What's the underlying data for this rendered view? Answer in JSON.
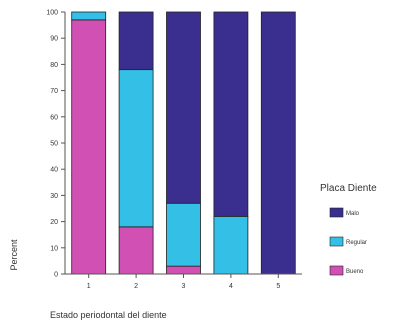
{
  "chart_data": {
    "type": "bar",
    "stacked": true,
    "categories": [
      "1",
      "2",
      "3",
      "4",
      "5"
    ],
    "series": [
      {
        "name": "Bueno",
        "color": "#d050b4",
        "values": [
          97,
          18,
          3,
          0,
          0
        ]
      },
      {
        "name": "Regular",
        "color": "#34bfe6",
        "values": [
          3,
          60,
          24,
          22,
          0
        ]
      },
      {
        "name": "Malo",
        "color": "#3a2f8f",
        "values": [
          0,
          22,
          73,
          78,
          100
        ]
      }
    ],
    "xlabel": "Estado periodontal del diente",
    "ylabel": "Percent",
    "ylim": [
      0,
      100
    ],
    "yticks": [
      "0",
      "10",
      "20",
      "30",
      "40",
      "50",
      "60",
      "70",
      "80",
      "90",
      "100"
    ],
    "legend": {
      "title": "Placa Diente",
      "position": "right",
      "order": [
        "Malo",
        "Regular",
        "Bueno"
      ]
    },
    "grid": false
  }
}
